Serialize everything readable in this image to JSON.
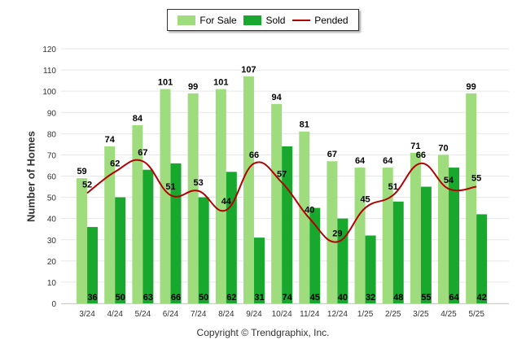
{
  "legend": {
    "for_sale": "For Sale",
    "sold": "Sold",
    "pended": "Pended"
  },
  "copyright": "Copyright © Trendgraphix, Inc.",
  "colors": {
    "for_sale": "#9fdc7e",
    "sold": "#18a82e",
    "pended": "#b30000"
  },
  "chart_data": {
    "type": "bar",
    "ylabel": "Number of Homes",
    "ylim": [
      0,
      120
    ],
    "yticks": [
      0,
      10,
      20,
      30,
      40,
      50,
      60,
      70,
      80,
      90,
      100,
      110,
      120
    ],
    "grid": true,
    "legend_position": "top-center",
    "categories": [
      "3/24",
      "4/24",
      "5/24",
      "6/24",
      "7/24",
      "8/24",
      "9/24",
      "10/24",
      "11/24",
      "12/24",
      "1/25",
      "2/25",
      "3/25",
      "4/25",
      "5/25"
    ],
    "series": [
      {
        "name": "For Sale",
        "type": "bar",
        "values": [
          59,
          74,
          84,
          101,
          99,
          101,
          107,
          94,
          81,
          67,
          64,
          64,
          71,
          70,
          99
        ]
      },
      {
        "name": "Sold",
        "type": "bar",
        "values": [
          36,
          50,
          63,
          66,
          50,
          62,
          31,
          74,
          45,
          40,
          32,
          48,
          55,
          64,
          42
        ]
      },
      {
        "name": "Pended",
        "type": "line",
        "values": [
          52,
          62,
          67,
          51,
          53,
          44,
          66,
          57,
          40,
          29,
          45,
          51,
          66,
          54,
          55
        ]
      }
    ]
  }
}
